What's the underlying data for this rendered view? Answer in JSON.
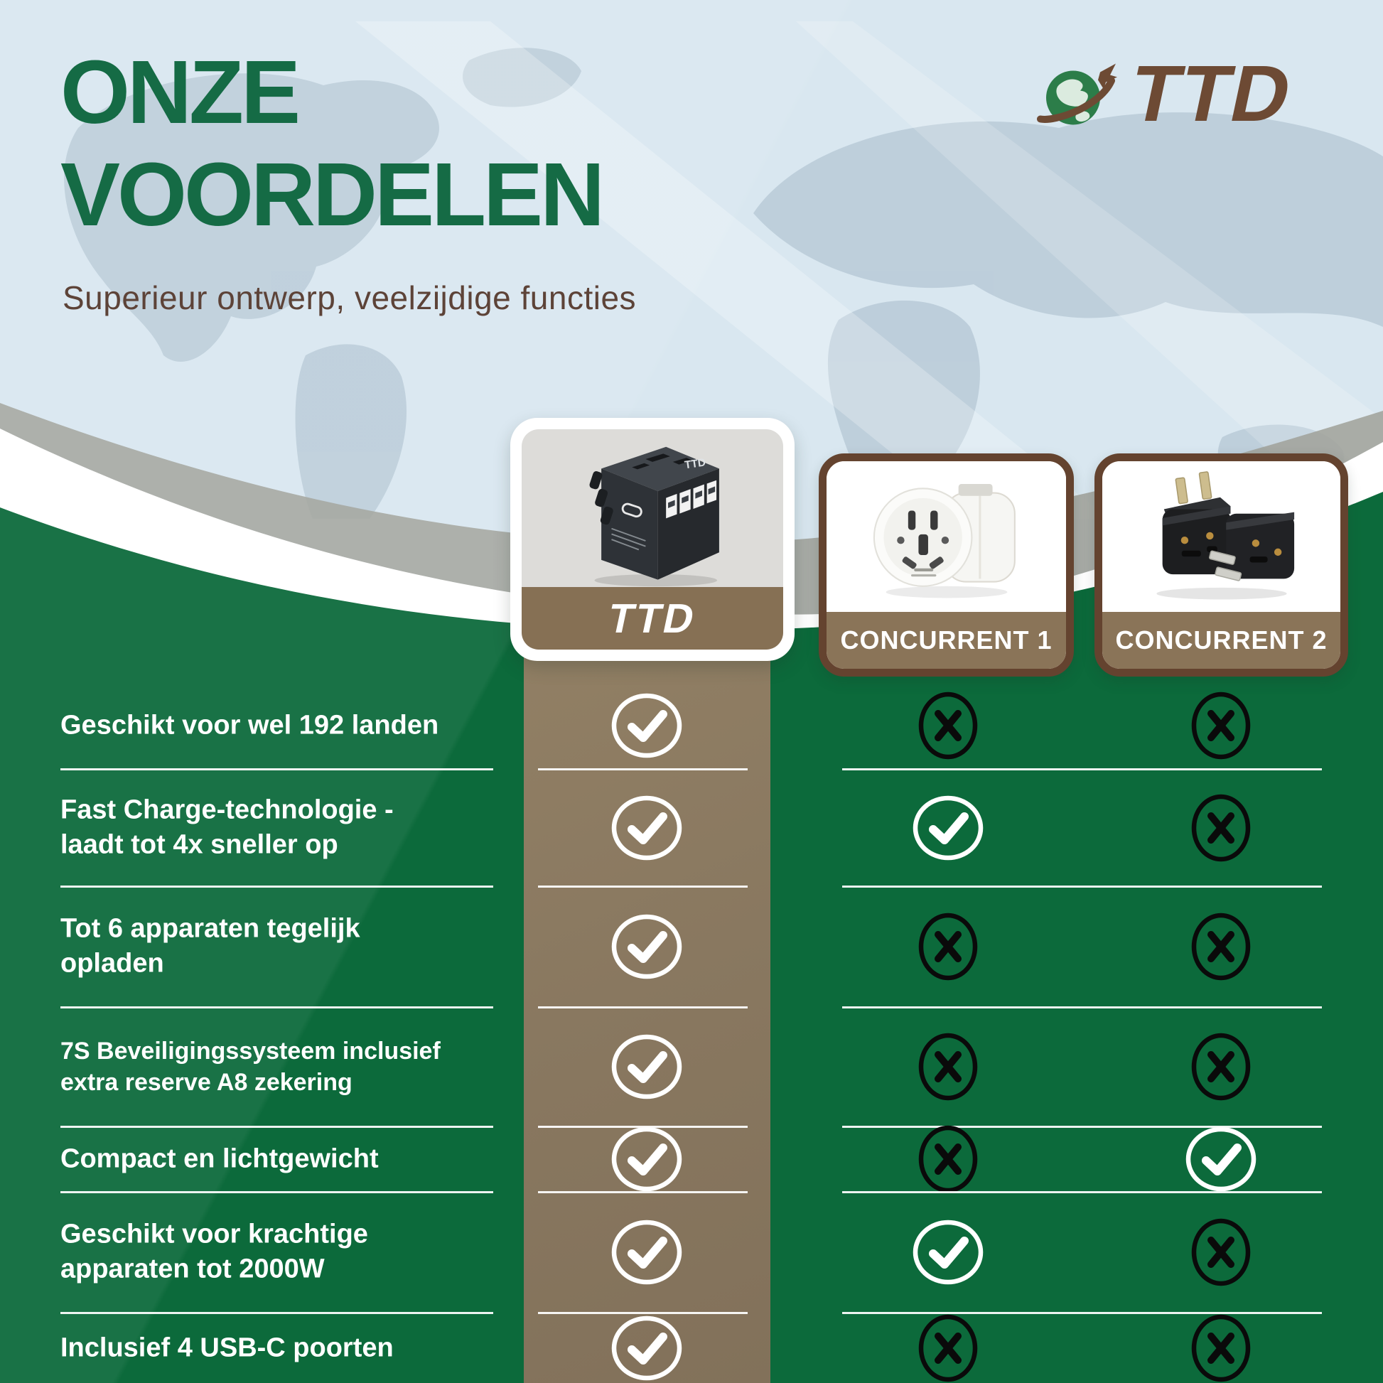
{
  "page": {
    "title_lines": [
      "ONZE",
      "VOORDELEN"
    ],
    "subtitle": "Superieur ontwerp, veelzijdige functies"
  },
  "brand": {
    "name": "TTD"
  },
  "products": [
    {
      "id": "ttd",
      "name": "TTD"
    },
    {
      "id": "concurrent1",
      "name": "CONCURRENT 1"
    },
    {
      "id": "concurrent2",
      "name": "CONCURRENT 2"
    }
  ],
  "comparison": {
    "rows": [
      {
        "label": "Geschikt voor wel 192 landen",
        "lines": [
          "Geschikt voor wel 192 landen"
        ],
        "small": false,
        "ttd": "check",
        "concurrent1": "cross",
        "concurrent2": "cross"
      },
      {
        "label": "Fast Charge-technologie - laadt tot 4x sneller op",
        "lines": [
          "Fast Charge-technologie -",
          "laadt tot 4x sneller op"
        ],
        "small": false,
        "ttd": "check",
        "concurrent1": "check",
        "concurrent2": "cross"
      },
      {
        "label": "Tot 6 apparaten tegelijk opladen",
        "lines": [
          "Tot 6 apparaten tegelijk",
          "opladen"
        ],
        "small": false,
        "ttd": "check",
        "concurrent1": "cross",
        "concurrent2": "cross"
      },
      {
        "label": "7S Beveiligingssysteem inclusief extra reserve A8 zekering",
        "lines": [
          "7S Beveiligingssysteem inclusief",
          "extra reserve A8 zekering"
        ],
        "small": true,
        "ttd": "check",
        "concurrent1": "cross",
        "concurrent2": "cross"
      },
      {
        "label": "Compact en lichtgewicht",
        "lines": [
          "Compact en lichtgewicht"
        ],
        "small": false,
        "ttd": "check",
        "concurrent1": "cross",
        "concurrent2": "check"
      },
      {
        "label": "Geschikt voor krachtige apparaten tot 2000W",
        "lines": [
          "Geschikt voor krachtige",
          "apparaten tot 2000W"
        ],
        "small": false,
        "ttd": "check",
        "concurrent1": "check",
        "concurrent2": "cross"
      },
      {
        "label": "Inclusief 4 USB-C poorten",
        "lines": [
          "Inclusief 4 USB-C poorten"
        ],
        "small": false,
        "ttd": "check",
        "concurrent1": "cross",
        "concurrent2": "cross"
      }
    ]
  },
  "colors": {
    "background_top": "#d9e7f0",
    "map_silhouette": "#b7c9d6",
    "title_green": "#156b45",
    "body_green": "#0c6a3b",
    "tan_column": "#8b7a5f",
    "card_band_brown": "#867054",
    "card_border_brown": "#64432f",
    "subtitle_brown": "#5d4338",
    "logo_brown": "#6d4a34",
    "white": "#ffffff",
    "black": "#0a0a0a"
  }
}
